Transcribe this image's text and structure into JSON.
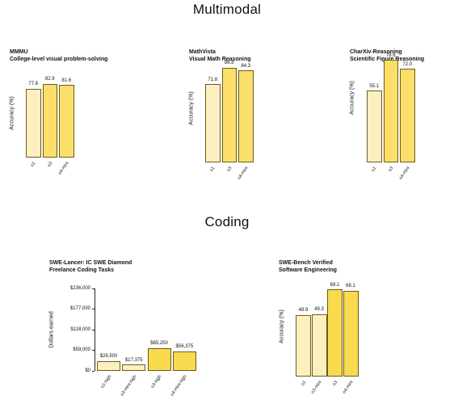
{
  "sections": {
    "multimodal": "Multimodal",
    "coding": "Coding"
  },
  "colors": {
    "light": "#fdf0c0",
    "mid": "#fbdf6a",
    "strong": "#fada4e",
    "edge": "#6d5a16"
  },
  "chart_data": [
    {
      "type": "bar",
      "title": "MMMU",
      "subtitle": "College-level visual problem-solving",
      "ylabel": "Accuracy (%)",
      "categories": [
        "o1",
        "o3",
        "o4-mini"
      ],
      "values": [
        77.6,
        82.9,
        81.6
      ],
      "labels": [
        "77.6",
        "82.9",
        "81.6"
      ],
      "ylim": [
        0,
        100
      ],
      "grid": false
    },
    {
      "type": "bar",
      "title": "MathVista",
      "subtitle": "Visual Math Reasoning",
      "ylabel": "Accuracy (%)",
      "categories": [
        "o1",
        "o3",
        "o4-mini"
      ],
      "values": [
        71.8,
        86.8,
        84.3
      ],
      "labels": [
        "71.8",
        "86.8",
        "84.3"
      ],
      "ylim": [
        0,
        100
      ],
      "grid": false
    },
    {
      "type": "bar",
      "title": "CharXiv-Reasoning",
      "subtitle": "Scientific Figure Reasoning",
      "ylabel": "Accuracy (%)",
      "categories": [
        "o1",
        "o3",
        "o4-mini"
      ],
      "values": [
        55.1,
        78.6,
        72.0
      ],
      "labels": [
        "55.1",
        "78.6",
        "72.0"
      ],
      "ylim": [
        0,
        100
      ],
      "grid": false
    },
    {
      "type": "bar",
      "title": "SWE-Lancer: IC SWE Diamond",
      "subtitle": "Freelance Coding Tasks",
      "ylabel": "Dollars earned",
      "categories": [
        "o1-high",
        "o3-mini-high",
        "o3-high",
        "o4-mini-high"
      ],
      "values": [
        28500,
        17375,
        65250,
        56375
      ],
      "labels": [
        "$28,500",
        "$17,375",
        "$65,250",
        "$56,375"
      ],
      "yticks": [
        0,
        59000,
        118000,
        177000,
        236000
      ],
      "yticklabels": [
        "$0",
        "$59,000",
        "$118,000",
        "$177,000",
        "$236,000"
      ],
      "ylim": [
        0,
        236000
      ],
      "grid": false
    },
    {
      "type": "bar",
      "title": "SWE-Bench Verified",
      "subtitle": "Software Engineering",
      "ylabel": "Accuracy (%)",
      "categories": [
        "o1",
        "o3-mini",
        "o3",
        "o4-mini"
      ],
      "values": [
        48.9,
        49.3,
        69.1,
        68.1
      ],
      "labels": [
        "48.9",
        "49.3",
        "69.1",
        "68.1"
      ],
      "ylim": [
        0,
        80
      ],
      "grid": false
    }
  ]
}
